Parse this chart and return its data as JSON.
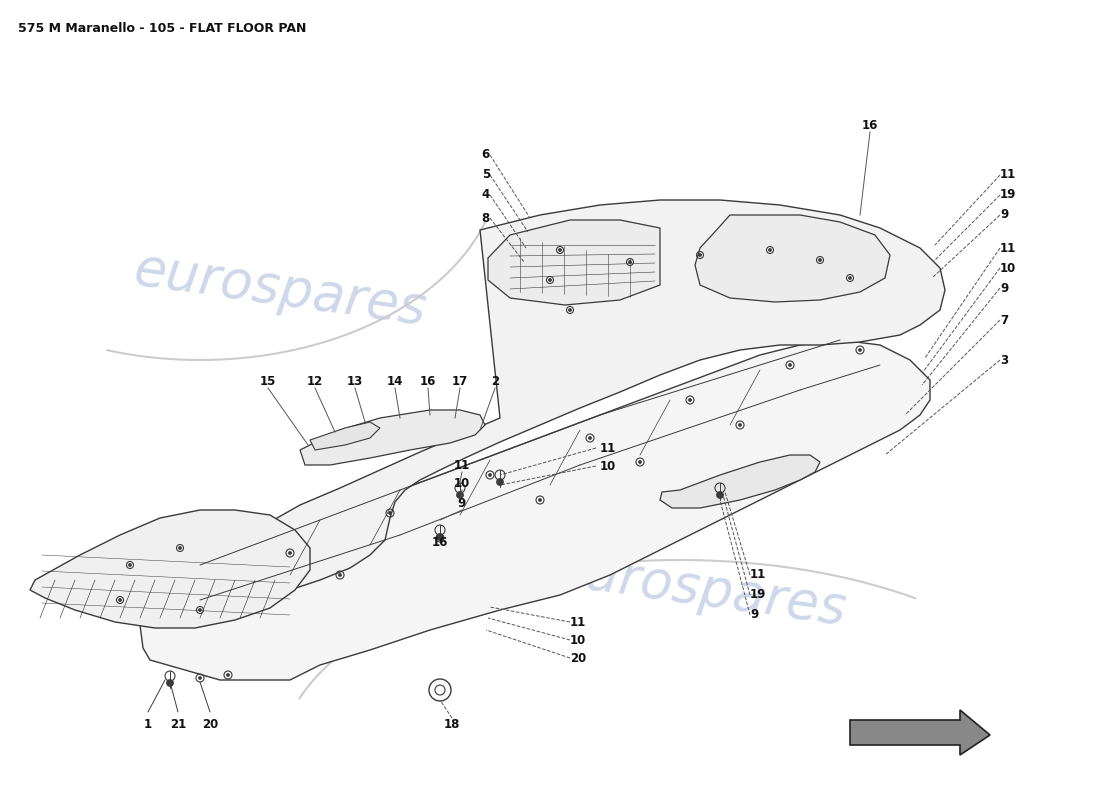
{
  "title": "575 M Maranello - 105 - FLAT FLOOR PAN",
  "title_fontsize": 9,
  "background_color": "#ffffff",
  "watermark_text": "eurospares",
  "watermark_color": "#c8d4e8",
  "watermark_fontsize": 38,
  "line_color": "#3a3a3a",
  "line_width": 1.0,
  "fill_color": "#f8f8f8",
  "label_fontsize": 8.5,
  "label_fontweight": "bold",
  "dashed_color": "#555555"
}
